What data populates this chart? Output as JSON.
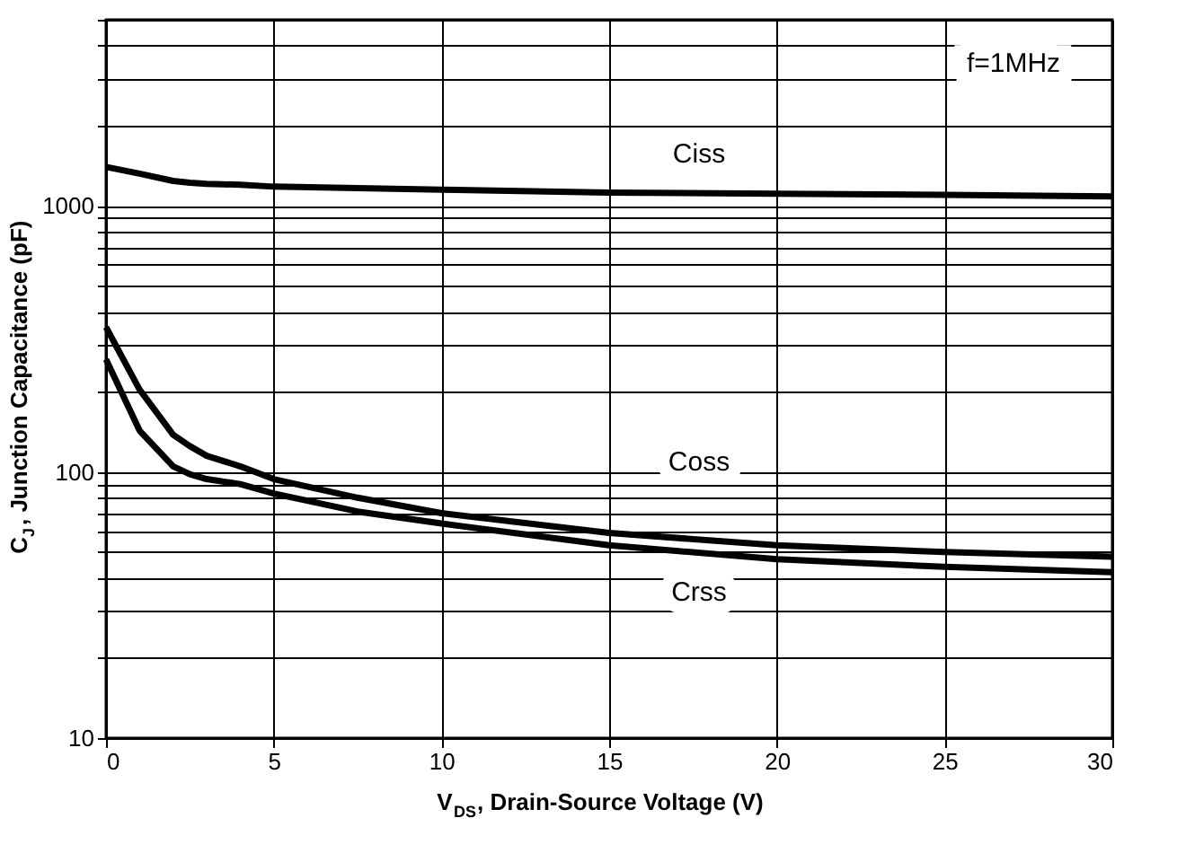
{
  "chart_data": {
    "type": "line",
    "xlabel": "V$_{DS}$, Drain-Source Voltage (V)",
    "ylabel": "C$_{J}$, Junction Capacitance (pF)",
    "xlim": [
      0,
      30
    ],
    "xticks": [
      0,
      5,
      10,
      15,
      20,
      25,
      30
    ],
    "ylim": [
      10,
      5000
    ],
    "log": true,
    "grid": true,
    "marker": "none",
    "line_style": "solid",
    "yticks": [
      10,
      {
        "value": 20,
        "label": null
      },
      {
        "value": 30,
        "label": null
      },
      {
        "value": 40,
        "label": null
      },
      {
        "value": 50,
        "label": null
      },
      {
        "value": 60,
        "label": null
      },
      {
        "value": 70,
        "label": null
      },
      {
        "value": 80,
        "label": null
      },
      {
        "value": 90,
        "label": null
      },
      100,
      {
        "value": 200,
        "label": null
      },
      {
        "value": 300,
        "label": null
      },
      {
        "value": 400,
        "label": null
      },
      {
        "value": 500,
        "label": null
      },
      {
        "value": 600,
        "label": null
      },
      {
        "value": 700,
        "label": null
      },
      {
        "value": 800,
        "label": null
      },
      {
        "value": 900,
        "label": null
      },
      1000,
      {
        "value": 2000,
        "label": null
      },
      {
        "value": 3000,
        "label": null
      },
      {
        "value": 4000,
        "label": null
      },
      {
        "value": 5000,
        "label": null
      }
    ],
    "x": [
      0,
      1,
      2,
      2.5,
      3,
      4,
      5,
      7.5,
      10,
      15,
      20,
      25,
      30
    ],
    "series": [
      {
        "name": "Ciss",
        "color": "#000000",
        "values": [
          1400,
          1320,
          1240,
          1220,
          1210,
          1200,
          1180,
          1165,
          1150,
          1120,
          1110,
          1100,
          1085
        ]
      },
      {
        "name": "Coss",
        "color": "#000000",
        "values": [
          350,
          204,
          138,
          125,
          115,
          105,
          94,
          80,
          70,
          59,
          53,
          50,
          48
        ]
      },
      {
        "name": "Crss",
        "color": "#000000",
        "values": [
          265,
          143,
          105,
          98,
          94,
          90,
          83,
          71,
          64,
          53,
          47,
          44,
          42
        ]
      }
    ],
    "annotations": [
      "f=1MHz"
    ]
  }
}
